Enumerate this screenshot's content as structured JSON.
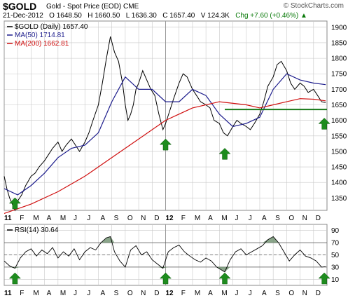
{
  "header": {
    "symbol": "$GOLD",
    "subtitle": "Gold - Spot Price (EOD)  CME",
    "logo": "© StockCharts.com",
    "date": "21-Dec-2012",
    "open": "O 1648.50",
    "high": "H 1660.50",
    "low": "L 1636.30",
    "close": "C 1657.40",
    "volume": "V 124.3K",
    "change": "Chg +7.60 (+0.46%)",
    "change_icon": "up-arrow-icon"
  },
  "colors": {
    "price": "#000000",
    "ma50": "#1c1c8c",
    "ma200": "#d01010",
    "support": "#1a7a1a",
    "arrow": "#1e8c1e",
    "rsi": "#000000",
    "rsi_fill": "#6d8f6d",
    "grid": "#c8c8c8"
  },
  "chart_data": [
    {
      "type": "line",
      "panel": "price",
      "legend": [
        {
          "label": "$GOLD (Daily) 1657.40",
          "color": "#000000"
        },
        {
          "label": "MA(50) 1714.81",
          "color": "#1c1c8c"
        },
        {
          "label": "MA(200) 1662.81",
          "color": "#d01010"
        }
      ],
      "legend_position": "top-left",
      "yaxis": {
        "ticks": [
          1350,
          1400,
          1450,
          1500,
          1550,
          1600,
          1650,
          1700,
          1750,
          1800,
          1850,
          1900
        ],
        "ylim": [
          1310,
          1920
        ],
        "side": "right"
      },
      "xaxis": {
        "labels": [
          "11",
          "F",
          "M",
          "A",
          "M",
          "J",
          "J",
          "A",
          "S",
          "O",
          "N",
          "D",
          "12",
          "F",
          "M",
          "A",
          "M",
          "J",
          "J",
          "A",
          "S",
          "O",
          "N",
          "D"
        ],
        "range": [
          0,
          24
        ]
      },
      "grid": true,
      "series": [
        {
          "name": "$GOLD (Daily)",
          "points": [
            [
              0,
              1420
            ],
            [
              0.2,
              1380
            ],
            [
              0.4,
              1350
            ],
            [
              0.6,
              1330
            ],
            [
              0.8,
              1310
            ],
            [
              1.0,
              1340
            ],
            [
              1.3,
              1360
            ],
            [
              1.6,
              1390
            ],
            [
              2.0,
              1420
            ],
            [
              2.3,
              1430
            ],
            [
              2.6,
              1450
            ],
            [
              3.0,
              1470
            ],
            [
              3.3,
              1490
            ],
            [
              3.6,
              1510
            ],
            [
              4.0,
              1530
            ],
            [
              4.3,
              1500
            ],
            [
              4.6,
              1520
            ],
            [
              5.0,
              1540
            ],
            [
              5.3,
              1520
            ],
            [
              5.6,
              1500
            ],
            [
              6.0,
              1530
            ],
            [
              6.3,
              1560
            ],
            [
              6.6,
              1600
            ],
            [
              7.0,
              1650
            ],
            [
              7.3,
              1720
            ],
            [
              7.6,
              1800
            ],
            [
              7.9,
              1870
            ],
            [
              8.2,
              1820
            ],
            [
              8.5,
              1790
            ],
            [
              8.8,
              1720
            ],
            [
              9.0,
              1650
            ],
            [
              9.2,
              1600
            ],
            [
              9.4,
              1620
            ],
            [
              9.6,
              1650
            ],
            [
              9.8,
              1700
            ],
            [
              10.0,
              1720
            ],
            [
              10.3,
              1760
            ],
            [
              10.6,
              1730
            ],
            [
              10.9,
              1700
            ],
            [
              11.2,
              1680
            ],
            [
              11.5,
              1620
            ],
            [
              11.8,
              1570
            ],
            [
              12.0,
              1590
            ],
            [
              12.3,
              1630
            ],
            [
              12.6,
              1670
            ],
            [
              13.0,
              1720
            ],
            [
              13.3,
              1750
            ],
            [
              13.6,
              1740
            ],
            [
              14.0,
              1700
            ],
            [
              14.3,
              1680
            ],
            [
              14.6,
              1660
            ],
            [
              15.0,
              1650
            ],
            [
              15.3,
              1640
            ],
            [
              15.6,
              1600
            ],
            [
              16.0,
              1590
            ],
            [
              16.3,
              1560
            ],
            [
              16.6,
              1550
            ],
            [
              17.0,
              1580
            ],
            [
              17.3,
              1600
            ],
            [
              17.6,
              1590
            ],
            [
              18.0,
              1580
            ],
            [
              18.3,
              1570
            ],
            [
              18.6,
              1590
            ],
            [
              19.0,
              1620
            ],
            [
              19.3,
              1660
            ],
            [
              19.6,
              1710
            ],
            [
              20.0,
              1740
            ],
            [
              20.3,
              1780
            ],
            [
              20.6,
              1790
            ],
            [
              21.0,
              1760
            ],
            [
              21.3,
              1720
            ],
            [
              21.6,
              1700
            ],
            [
              22.0,
              1720
            ],
            [
              22.3,
              1710
            ],
            [
              22.6,
              1690
            ],
            [
              23.0,
              1700
            ],
            [
              23.3,
              1680
            ],
            [
              23.6,
              1660
            ],
            [
              23.9,
              1657
            ]
          ]
        },
        {
          "name": "MA(50)",
          "points": [
            [
              0,
              1380
            ],
            [
              1,
              1360
            ],
            [
              2,
              1390
            ],
            [
              3,
              1430
            ],
            [
              4,
              1480
            ],
            [
              5,
              1510
            ],
            [
              6,
              1520
            ],
            [
              7,
              1560
            ],
            [
              8,
              1660
            ],
            [
              9,
              1740
            ],
            [
              10,
              1700
            ],
            [
              11,
              1700
            ],
            [
              12,
              1660
            ],
            [
              13,
              1660
            ],
            [
              14,
              1700
            ],
            [
              15,
              1680
            ],
            [
              16,
              1620
            ],
            [
              17,
              1580
            ],
            [
              18,
              1590
            ],
            [
              19,
              1610
            ],
            [
              20,
              1700
            ],
            [
              21,
              1750
            ],
            [
              22,
              1730
            ],
            [
              23,
              1720
            ],
            [
              23.9,
              1715
            ]
          ]
        },
        {
          "name": "MA(200)",
          "points": [
            [
              0,
              1300
            ],
            [
              2,
              1330
            ],
            [
              4,
              1370
            ],
            [
              6,
              1420
            ],
            [
              8,
              1480
            ],
            [
              10,
              1540
            ],
            [
              12,
              1600
            ],
            [
              14,
              1640
            ],
            [
              16,
              1660
            ],
            [
              18,
              1650
            ],
            [
              19,
              1640
            ],
            [
              20,
              1650
            ],
            [
              21,
              1660
            ],
            [
              22,
              1670
            ],
            [
              23,
              1668
            ],
            [
              23.9,
              1663
            ]
          ]
        }
      ],
      "annotations": [
        {
          "type": "support-line",
          "value": 1635,
          "x_range": [
            16.4,
            24
          ]
        },
        {
          "type": "up-arrow",
          "x": 0.8
        },
        {
          "type": "up-arrow",
          "x": 12.0
        },
        {
          "type": "up-arrow",
          "x": 16.4
        },
        {
          "type": "up-arrow",
          "x": 23.8
        }
      ]
    },
    {
      "type": "line",
      "panel": "rsi",
      "legend": [
        {
          "label": "RSI(14) 30.64",
          "color": "#000000"
        }
      ],
      "legend_position": "top-left",
      "yaxis": {
        "ticks": [
          10,
          30,
          50,
          70,
          90
        ],
        "ylim": [
          0,
          100
        ],
        "side": "right",
        "reference_lines": [
          30,
          50,
          70
        ]
      },
      "xaxis": {
        "labels": [
          "11",
          "F",
          "M",
          "A",
          "M",
          "J",
          "J",
          "A",
          "S",
          "O",
          "N",
          "D",
          "12",
          "F",
          "M",
          "A",
          "M",
          "J",
          "J",
          "A",
          "S",
          "O",
          "N",
          "D"
        ],
        "range": [
          0,
          24
        ]
      },
      "grid": true,
      "series": [
        {
          "name": "RSI(14)",
          "points": [
            [
              0,
              40
            ],
            [
              0.4,
              32
            ],
            [
              0.8,
              28
            ],
            [
              1.2,
              45
            ],
            [
              1.6,
              55
            ],
            [
              2.0,
              60
            ],
            [
              2.4,
              48
            ],
            [
              2.8,
              58
            ],
            [
              3.2,
              52
            ],
            [
              3.6,
              62
            ],
            [
              4.0,
              45
            ],
            [
              4.4,
              55
            ],
            [
              4.8,
              48
            ],
            [
              5.2,
              60
            ],
            [
              5.6,
              42
            ],
            [
              6.0,
              55
            ],
            [
              6.4,
              62
            ],
            [
              6.8,
              58
            ],
            [
              7.2,
              70
            ],
            [
              7.6,
              78
            ],
            [
              7.9,
              80
            ],
            [
              8.2,
              55
            ],
            [
              8.6,
              40
            ],
            [
              9.0,
              30
            ],
            [
              9.4,
              58
            ],
            [
              9.8,
              65
            ],
            [
              10.2,
              50
            ],
            [
              10.6,
              55
            ],
            [
              11.0,
              42
            ],
            [
              11.4,
              35
            ],
            [
              11.8,
              28
            ],
            [
              12.2,
              55
            ],
            [
              12.6,
              62
            ],
            [
              13.0,
              66
            ],
            [
              13.4,
              55
            ],
            [
              13.8,
              48
            ],
            [
              14.2,
              42
            ],
            [
              14.6,
              38
            ],
            [
              15.0,
              45
            ],
            [
              15.4,
              40
            ],
            [
              15.8,
              30
            ],
            [
              16.4,
              22
            ],
            [
              16.8,
              42
            ],
            [
              17.2,
              55
            ],
            [
              17.6,
              60
            ],
            [
              18.0,
              50
            ],
            [
              18.4,
              55
            ],
            [
              18.8,
              60
            ],
            [
              19.2,
              65
            ],
            [
              19.6,
              75
            ],
            [
              20.0,
              80
            ],
            [
              20.4,
              70
            ],
            [
              20.8,
              55
            ],
            [
              21.2,
              40
            ],
            [
              21.6,
              50
            ],
            [
              22.0,
              58
            ],
            [
              22.4,
              48
            ],
            [
              22.8,
              45
            ],
            [
              23.2,
              40
            ],
            [
              23.6,
              30
            ],
            [
              23.9,
              30.64
            ]
          ]
        }
      ],
      "annotations": [
        {
          "type": "up-arrow",
          "x": 0.8
        },
        {
          "type": "up-arrow",
          "x": 12.0
        },
        {
          "type": "up-arrow",
          "x": 16.4
        },
        {
          "type": "up-arrow",
          "x": 23.8
        }
      ]
    }
  ]
}
